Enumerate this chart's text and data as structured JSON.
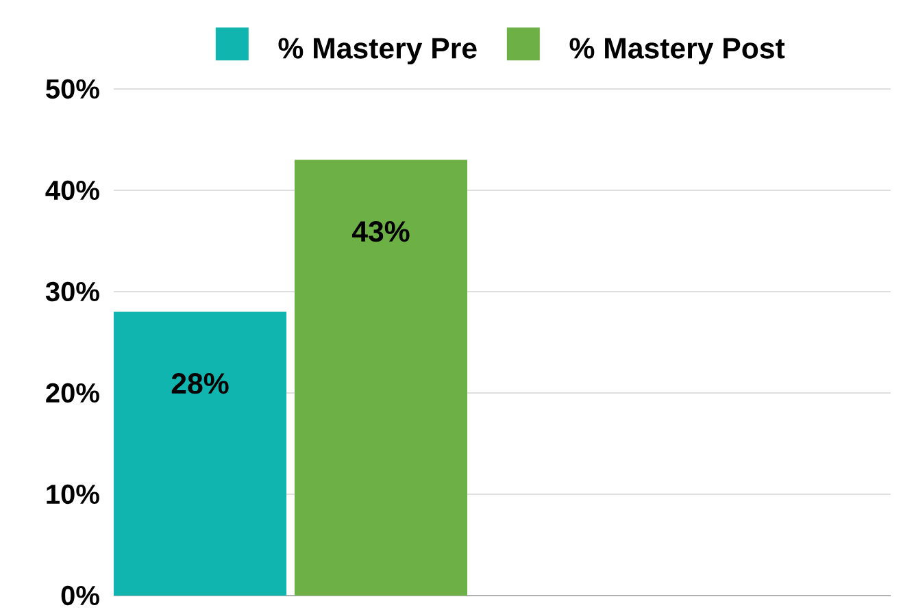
{
  "chart_data": {
    "type": "bar",
    "categories": [
      null
    ],
    "series": [
      {
        "name": "% Mastery Pre",
        "color": "#0fb5ae",
        "values": [
          28
        ],
        "value_labels": [
          "28%"
        ]
      },
      {
        "name": "% Mastery Post",
        "color": "#6db146",
        "values": [
          43
        ],
        "value_labels": [
          "43%"
        ]
      }
    ],
    "ylim": [
      0,
      50
    ],
    "yticks": [
      {
        "value": 0,
        "label": "0%"
      },
      {
        "value": 10,
        "label": "10%"
      },
      {
        "value": 20,
        "label": "20%"
      },
      {
        "value": 30,
        "label": "30%"
      },
      {
        "value": 40,
        "label": "40%"
      },
      {
        "value": 50,
        "label": "50%"
      }
    ],
    "grid": "y",
    "legend": "top"
  }
}
